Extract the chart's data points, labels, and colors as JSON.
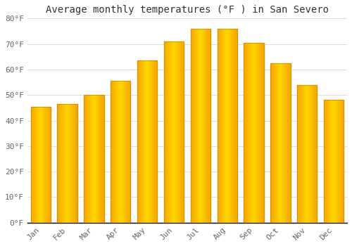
{
  "title": "Average monthly temperatures (°F ) in San Severo",
  "months": [
    "Jan",
    "Feb",
    "Mar",
    "Apr",
    "May",
    "Jun",
    "Jul",
    "Aug",
    "Sep",
    "Oct",
    "Nov",
    "Dec"
  ],
  "values": [
    45.5,
    46.5,
    50.0,
    55.5,
    63.5,
    71.0,
    76.0,
    76.0,
    70.5,
    62.5,
    54.0,
    48.0
  ],
  "bar_color_center": "#FFD700",
  "bar_color_edge": "#F5A800",
  "ylim": [
    0,
    80
  ],
  "yticks": [
    0,
    10,
    20,
    30,
    40,
    50,
    60,
    70,
    80
  ],
  "ytick_labels": [
    "0°F",
    "10°F",
    "20°F",
    "30°F",
    "40°F",
    "50°F",
    "60°F",
    "70°F",
    "80°F"
  ],
  "bg_color": "#FFFFFF",
  "grid_color": "#DDDDDD",
  "title_fontsize": 10,
  "tick_fontsize": 8,
  "title_color": "#333333",
  "tick_color": "#666666",
  "bar_width": 0.75
}
